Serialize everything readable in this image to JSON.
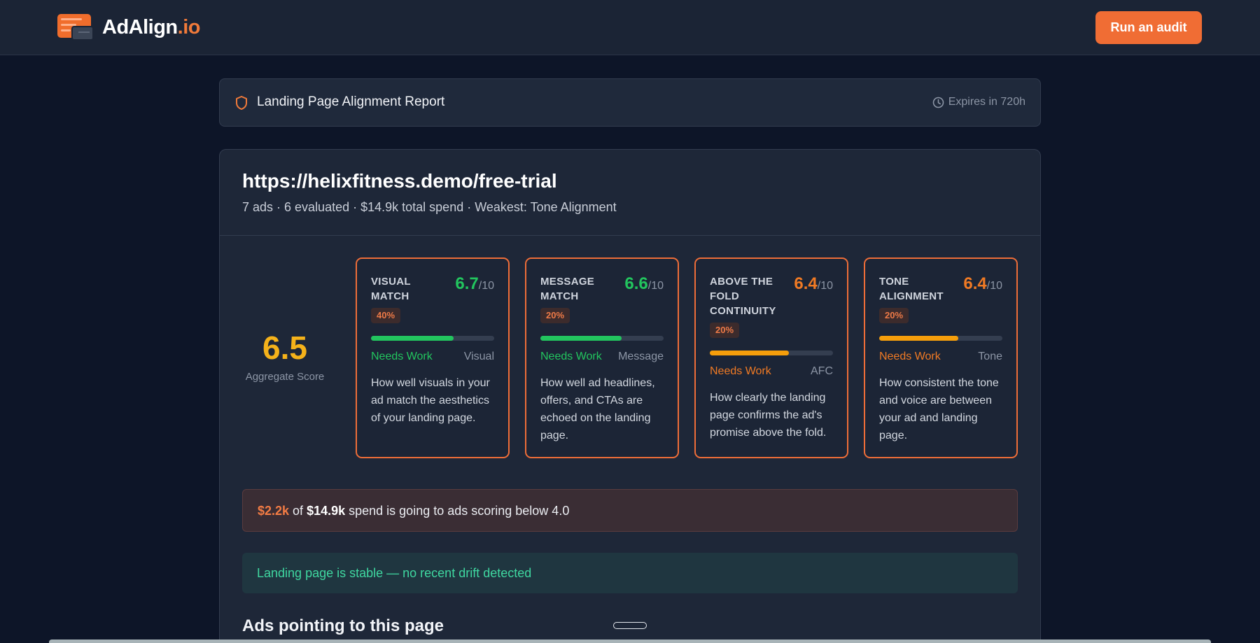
{
  "header": {
    "brand_name": "AdAlign",
    "brand_suffix": ".io",
    "cta_label": "Run an audit",
    "brand_color": "#f06d34"
  },
  "report_bar": {
    "icon": "shield-icon",
    "title": "Landing Page Alignment Report",
    "expires": "Expires in 720h"
  },
  "page": {
    "url": "https://helixfitness.demo/free-trial",
    "summary": "7 ads · 6 evaluated · $14.9k total spend · Weakest: Tone Alignment"
  },
  "aggregate": {
    "score": "6.5",
    "label": "Aggregate Score"
  },
  "metrics": [
    {
      "name": "VISUAL MATCH",
      "score": "6.7",
      "denominator": "/10",
      "weight": "40%",
      "progress": 0.67,
      "status": "Needs Work",
      "tag": "Visual",
      "description": "How well visuals in your ad match the aesthetics of your landing page.",
      "accent": "#22c55e"
    },
    {
      "name": "MESSAGE MATCH",
      "score": "6.6",
      "denominator": "/10",
      "weight": "20%",
      "progress": 0.66,
      "status": "Needs Work",
      "tag": "Message",
      "description": "How well ad headlines, offers, and CTAs are echoed on the landing page.",
      "accent": "#22c55e"
    },
    {
      "name": "ABOVE THE FOLD CONTINUITY",
      "score": "6.4",
      "denominator": "/10",
      "weight": "20%",
      "progress": 0.64,
      "status": "Needs Work",
      "tag": "AFC",
      "description": "How clearly the landing page confirms the ad's promise above the fold.",
      "accent": "#f59e0b",
      "text_accent": "#f07a24"
    },
    {
      "name": "TONE ALIGNMENT",
      "score": "6.4",
      "denominator": "/10",
      "weight": "20%",
      "progress": 0.64,
      "status": "Needs Work",
      "tag": "Tone",
      "description": "How consistent the tone and voice are between your ad and landing page.",
      "accent": "#f59e0b",
      "text_accent": "#f07a24"
    }
  ],
  "spend_alert": {
    "amount": "$2.2k",
    "text_of": " of ",
    "total": "$14.9k",
    "text_rest": " spend is going to ads scoring below 4.0"
  },
  "drift": {
    "message": "Landing page is stable — no recent drift detected"
  },
  "ads_section": {
    "title": "Ads pointing to this page"
  }
}
